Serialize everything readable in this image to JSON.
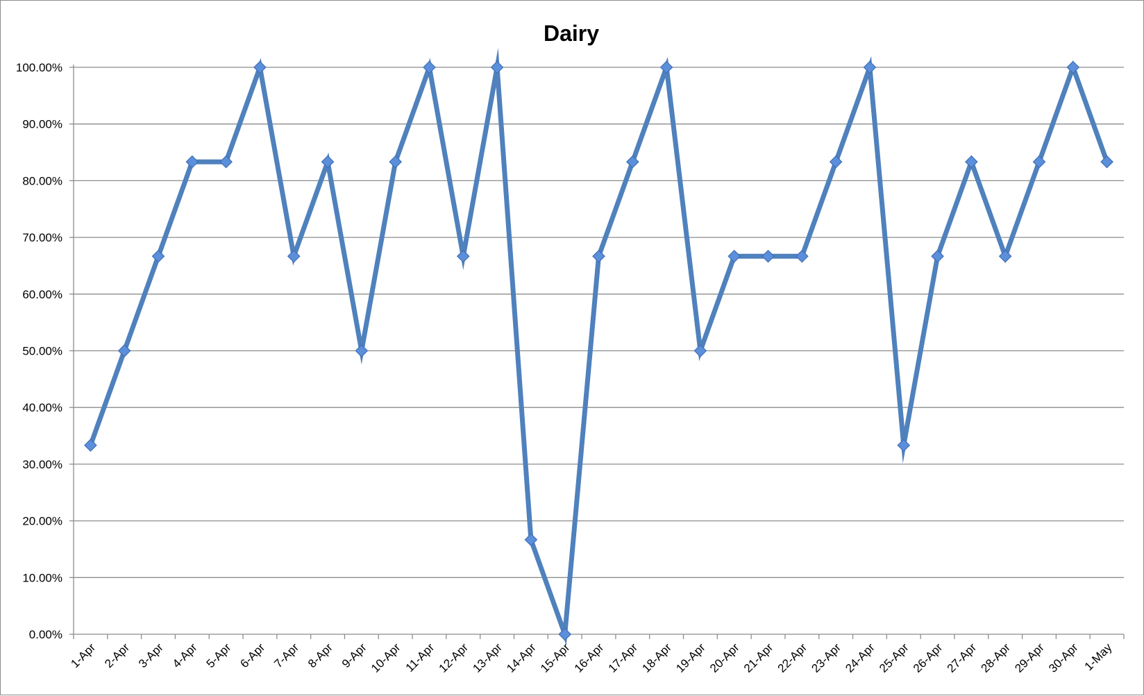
{
  "chart_data": {
    "type": "line",
    "title": "Dairy",
    "xlabel": "",
    "ylabel": "",
    "ylim": [
      0,
      1
    ],
    "y_tick_labels": [
      "0.00%",
      "10.00%",
      "20.00%",
      "30.00%",
      "40.00%",
      "50.00%",
      "60.00%",
      "70.00%",
      "80.00%",
      "90.00%",
      "100.00%"
    ],
    "grid": true,
    "legend": "none",
    "line_color": "#4F81BD",
    "marker_color": "#5B8FDB",
    "categories": [
      "1-Apr",
      "2-Apr",
      "3-Apr",
      "4-Apr",
      "5-Apr",
      "6-Apr",
      "7-Apr",
      "8-Apr",
      "9-Apr",
      "10-Apr",
      "11-Apr",
      "12-Apr",
      "13-Apr",
      "14-Apr",
      "15-Apr",
      "16-Apr",
      "17-Apr",
      "18-Apr",
      "19-Apr",
      "20-Apr",
      "21-Apr",
      "22-Apr",
      "23-Apr",
      "24-Apr",
      "25-Apr",
      "26-Apr",
      "27-Apr",
      "28-Apr",
      "29-Apr",
      "30-Apr",
      "1-May"
    ],
    "series": [
      {
        "values": [
          0.3333,
          0.5,
          0.6667,
          0.8333,
          0.8333,
          1.0,
          0.6667,
          0.8333,
          0.5,
          0.8333,
          1.0,
          0.6667,
          1.0,
          0.1667,
          0.0,
          0.6667,
          0.8333,
          1.0,
          0.5,
          0.6667,
          0.6667,
          0.6667,
          0.8333,
          1.0,
          0.3333,
          0.6667,
          0.8333,
          0.6667,
          0.8333,
          1.0,
          0.8333
        ]
      }
    ]
  }
}
